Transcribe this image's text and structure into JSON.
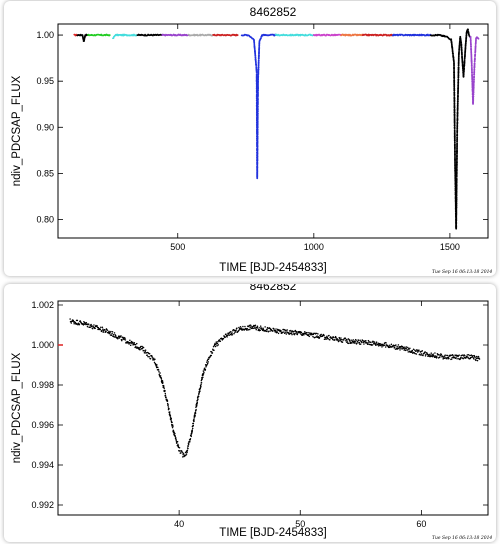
{
  "chart_data": [
    {
      "type": "scatter",
      "title": "8462852",
      "xlabel": "TIME [BJD-2454833]",
      "ylabel": "ndiv_PDCSAP_FLUX",
      "xlim": [
        60,
        1640
      ],
      "ylim": [
        0.78,
        1.012
      ],
      "xticks": [
        500,
        1000,
        1500
      ],
      "yticks": [
        0.8,
        0.85,
        0.9,
        0.95,
        1.0
      ],
      "timestamp": "Tue Sep 16 06:13:18 2014",
      "grid": false,
      "legend": "none",
      "series": [
        {
          "color": "#dd2222",
          "x": [
            120,
            130
          ],
          "y": [
            1.0,
            1.0
          ]
        },
        {
          "color": "#000000",
          "x": [
            131,
            150,
            155,
            160,
            170
          ],
          "y": [
            1.0,
            1.0,
            0.993,
            1.0,
            1.0
          ]
        },
        {
          "color": "#22cc22",
          "x": [
            170,
            190,
            210,
            230,
            250
          ],
          "y": [
            1.0,
            1.0,
            1.0,
            1.0,
            1.0
          ]
        },
        {
          "color": "#44dddd",
          "x": [
            262,
            270,
            290,
            310,
            330,
            350
          ],
          "y": [
            0.996,
            1.0,
            1.0,
            1.0,
            1.0,
            1.0
          ]
        },
        {
          "color": "#000000",
          "x": [
            352,
            380,
            400,
            420,
            440
          ],
          "y": [
            1.0,
            1.0,
            1.0,
            1.0,
            1.0
          ]
        },
        {
          "color": "#9944cc",
          "x": [
            443,
            470,
            500,
            525,
            540
          ],
          "y": [
            1.0,
            1.0,
            1.0,
            1.0,
            1.0
          ]
        },
        {
          "color": "#aaaaaa",
          "x": [
            540,
            560,
            580,
            600,
            630
          ],
          "y": [
            1.0,
            1.0,
            1.0,
            1.0,
            1.0
          ]
        },
        {
          "color": "#cc2222",
          "x": [
            630,
            650,
            670,
            690,
            720
          ],
          "y": [
            1.0,
            1.0,
            1.0,
            1.0,
            1.0
          ]
        },
        {
          "color": "#2233dd",
          "x": [
            735,
            760,
            780,
            790,
            792,
            795,
            800,
            810,
            830,
            860
          ],
          "y": [
            1.0,
            1.0,
            0.995,
            0.96,
            0.845,
            0.95,
            0.993,
            1.0,
            1.0,
            1.0
          ]
        },
        {
          "color": "#44dddd",
          "x": [
            860,
            890,
            920,
            950,
            980,
            1000
          ],
          "y": [
            1.0,
            1.0,
            1.0,
            1.0,
            1.0,
            1.0
          ]
        },
        {
          "color": "#cc44cc",
          "x": [
            1000,
            1030,
            1060,
            1090,
            1100
          ],
          "y": [
            1.0,
            1.0,
            1.0,
            1.0,
            1.0
          ]
        },
        {
          "color": "#ee7744",
          "x": [
            1100,
            1120,
            1150,
            1180
          ],
          "y": [
            1.0,
            1.0,
            1.0,
            1.0
          ]
        },
        {
          "color": "#cc2222",
          "x": [
            1180,
            1210,
            1240,
            1270,
            1290
          ],
          "y": [
            1.0,
            1.0,
            1.0,
            1.0,
            1.0
          ]
        },
        {
          "color": "#2233dd",
          "x": [
            1290,
            1320,
            1350,
            1380,
            1410,
            1430
          ],
          "y": [
            1.0,
            1.0,
            1.0,
            1.0,
            1.0,
            1.0
          ]
        },
        {
          "color": "#000000",
          "x": [
            1430,
            1460,
            1490,
            1505,
            1515,
            1519,
            1523,
            1527,
            1533,
            1538,
            1542,
            1545,
            1550,
            1558,
            1562,
            1566,
            1570,
            1575
          ],
          "y": [
            1.0,
            1.0,
            0.998,
            0.995,
            0.97,
            0.86,
            0.79,
            0.9,
            0.98,
            0.998,
            0.99,
            0.975,
            0.955,
            0.99,
            1.004,
            1.006,
            1.0,
            0.998
          ]
        },
        {
          "color": "#9944cc",
          "x": [
            1576,
            1580,
            1585,
            1590,
            1596,
            1600,
            1605
          ],
          "y": [
            0.998,
            0.97,
            0.925,
            0.965,
            0.996,
            0.998,
            0.996
          ]
        }
      ]
    },
    {
      "type": "scatter",
      "title": "8462852",
      "xlabel": "TIME [BJD-2454833]",
      "ylabel": "ndiv_PDCSAP_FLUX",
      "xlim": [
        30,
        65.5
      ],
      "ylim": [
        0.9915,
        1.0022
      ],
      "xticks": [
        40,
        50,
        60
      ],
      "yticks": [
        0.992,
        0.994,
        0.996,
        0.998,
        1.0,
        1.002
      ],
      "ytick_labels": [
        "0.992",
        "0.994",
        "0.996",
        "0.998",
        "1.000",
        "1.002"
      ],
      "timestamp": "Tue Sep 16 06:13:18 2014",
      "grid": false,
      "legend": "none",
      "series": [
        {
          "color": "#000000",
          "x": [
            31,
            32,
            33,
            34,
            35,
            36,
            37,
            38,
            38.5,
            39,
            39.5,
            40,
            40.3,
            40.6,
            41,
            41.5,
            42,
            42.5,
            43,
            44,
            45,
            46,
            47,
            48,
            50,
            52,
            54,
            56,
            58,
            60,
            62,
            64,
            64.8
          ],
          "y": [
            1.0012,
            1.0011,
            1.0009,
            1.0007,
            1.0004,
            1.0001,
            0.9998,
            0.9992,
            0.9984,
            0.9972,
            0.9958,
            0.9948,
            0.9945,
            0.9946,
            0.9955,
            0.9972,
            0.9986,
            0.9994,
            1.0,
            1.0005,
            1.0008,
            1.0009,
            1.0008,
            1.0007,
            1.0006,
            1.0004,
            1.0002,
            1.0001,
            0.9999,
            0.9996,
            0.9994,
            0.9994,
            0.9993
          ]
        }
      ]
    }
  ]
}
